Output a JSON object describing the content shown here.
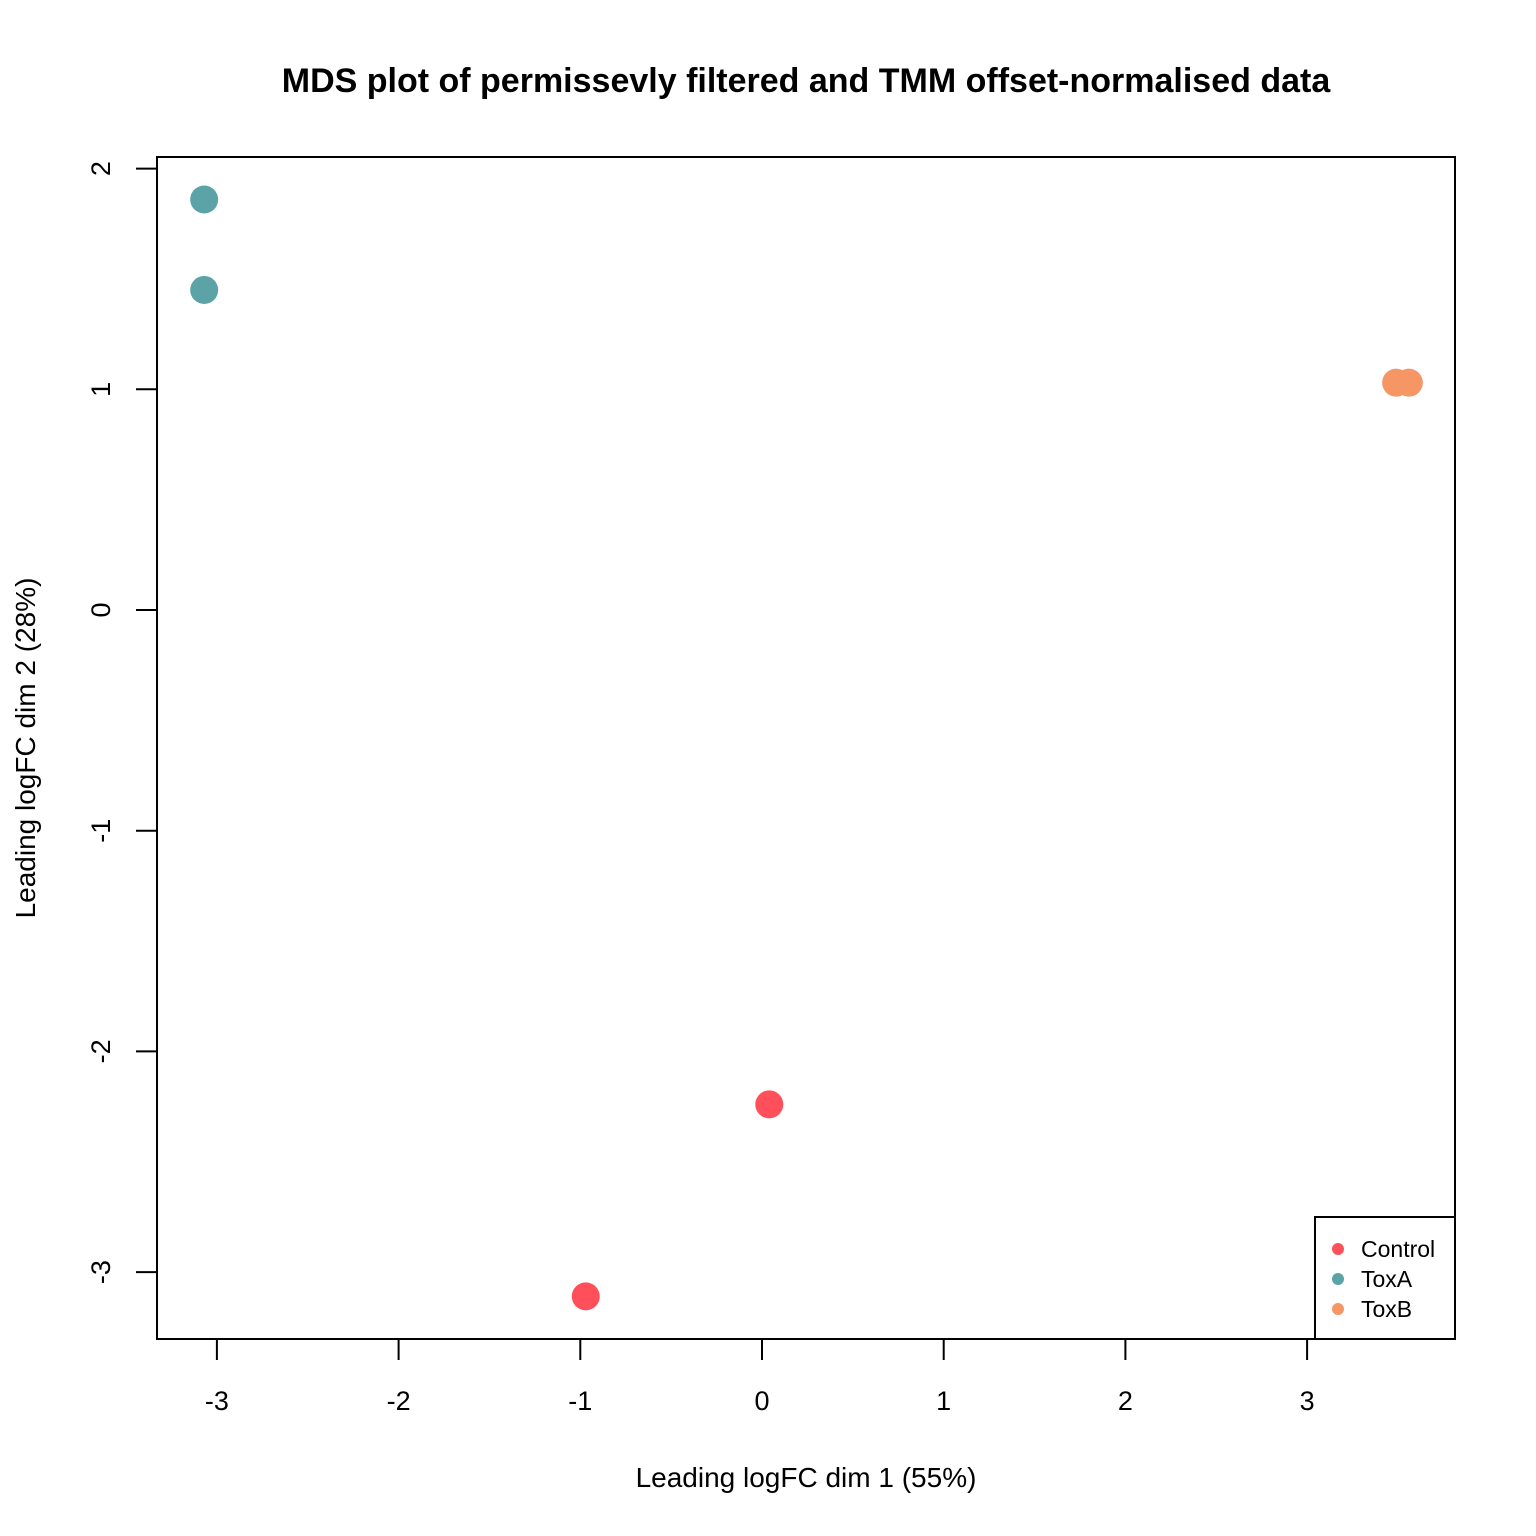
{
  "chart_data": {
    "type": "scatter",
    "title": "MDS plot of permissevly filtered and TMM offset-normalised data",
    "xlabel": "Leading logFC dim 1 (55%)",
    "ylabel": "Leading logFC dim 2 (28%)",
    "xlim": [
      -3.33,
      3.81
    ],
    "ylim": [
      -3.3,
      2.05
    ],
    "x_ticks": [
      -3,
      -2,
      -1,
      0,
      1,
      2,
      3
    ],
    "y_ticks": [
      -3,
      -2,
      -1,
      0,
      1,
      2
    ],
    "grid": false,
    "legend_position": "bottomright",
    "series": [
      {
        "name": "Control",
        "color": "#FF4F5A",
        "points": [
          {
            "x": 0.04,
            "y": -2.24
          },
          {
            "x": -0.97,
            "y": -3.11
          }
        ]
      },
      {
        "name": "ToxA",
        "color": "#5BA3A6",
        "points": [
          {
            "x": -3.07,
            "y": 1.86
          },
          {
            "x": -3.07,
            "y": 1.45
          }
        ]
      },
      {
        "name": "ToxB",
        "color": "#F79665",
        "points": [
          {
            "x": 3.49,
            "y": 1.03
          },
          {
            "x": 3.56,
            "y": 1.03
          }
        ]
      }
    ]
  }
}
